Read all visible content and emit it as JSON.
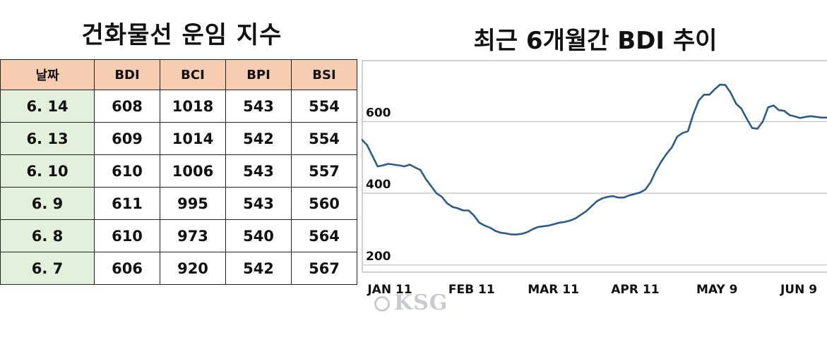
{
  "left_title": "건화물선 운임 지수",
  "right_title": "최근 6개월간 BDI 추이",
  "table": {
    "headers": [
      "날짜",
      "BDI",
      "BCI",
      "BPI",
      "BSI"
    ],
    "rows": [
      [
        "6. 14",
        "608",
        "1018",
        "543",
        "554"
      ],
      [
        "6. 13",
        "609",
        "1014",
        "542",
        "554"
      ],
      [
        "6. 10",
        "610",
        "1006",
        "543",
        "557"
      ],
      [
        "6. 9",
        "611",
        "995",
        "543",
        "560"
      ],
      [
        "6. 8",
        "610",
        "973",
        "540",
        "564"
      ],
      [
        "6. 7",
        "606",
        "920",
        "542",
        "567"
      ]
    ]
  },
  "watermark": "KSG",
  "colors": {
    "line": "#2a5b8a",
    "grid": "#c0c0c0",
    "header_bg": "#f6cdb0",
    "date_bg": "#e3f0dc"
  },
  "chart_data": {
    "type": "line",
    "title": "최근 6개월간 BDI 추이",
    "xlabel": "",
    "ylabel": "",
    "x_ticks": [
      "JAN 11",
      "FEB 11",
      "MAR 11",
      "APR 11",
      "MAY 9",
      "JUN 9"
    ],
    "y_ticks": [
      200,
      400,
      600
    ],
    "ylim": [
      180,
      770
    ],
    "grid": "horizontal",
    "series": [
      {
        "values": [
          550,
          535,
          505,
          475,
          478,
          482,
          480,
          478,
          475,
          480,
          472,
          465,
          440,
          420,
          400,
          390,
          372,
          362,
          358,
          352,
          352,
          338,
          318,
          310,
          304,
          295,
          290,
          288,
          285,
          285,
          287,
          292,
          300,
          306,
          308,
          310,
          314,
          318,
          320,
          324,
          330,
          340,
          350,
          364,
          378,
          386,
          390,
          392,
          388,
          388,
          394,
          398,
          402,
          410,
          430,
          462,
          488,
          510,
          528,
          558,
          568,
          573,
          620,
          658,
          675,
          675,
          690,
          703,
          702,
          680,
          650,
          636,
          608,
          582,
          580,
          600,
          640,
          645,
          632,
          630,
          618,
          614,
          610,
          613,
          615,
          613,
          611,
          611
        ]
      }
    ]
  }
}
